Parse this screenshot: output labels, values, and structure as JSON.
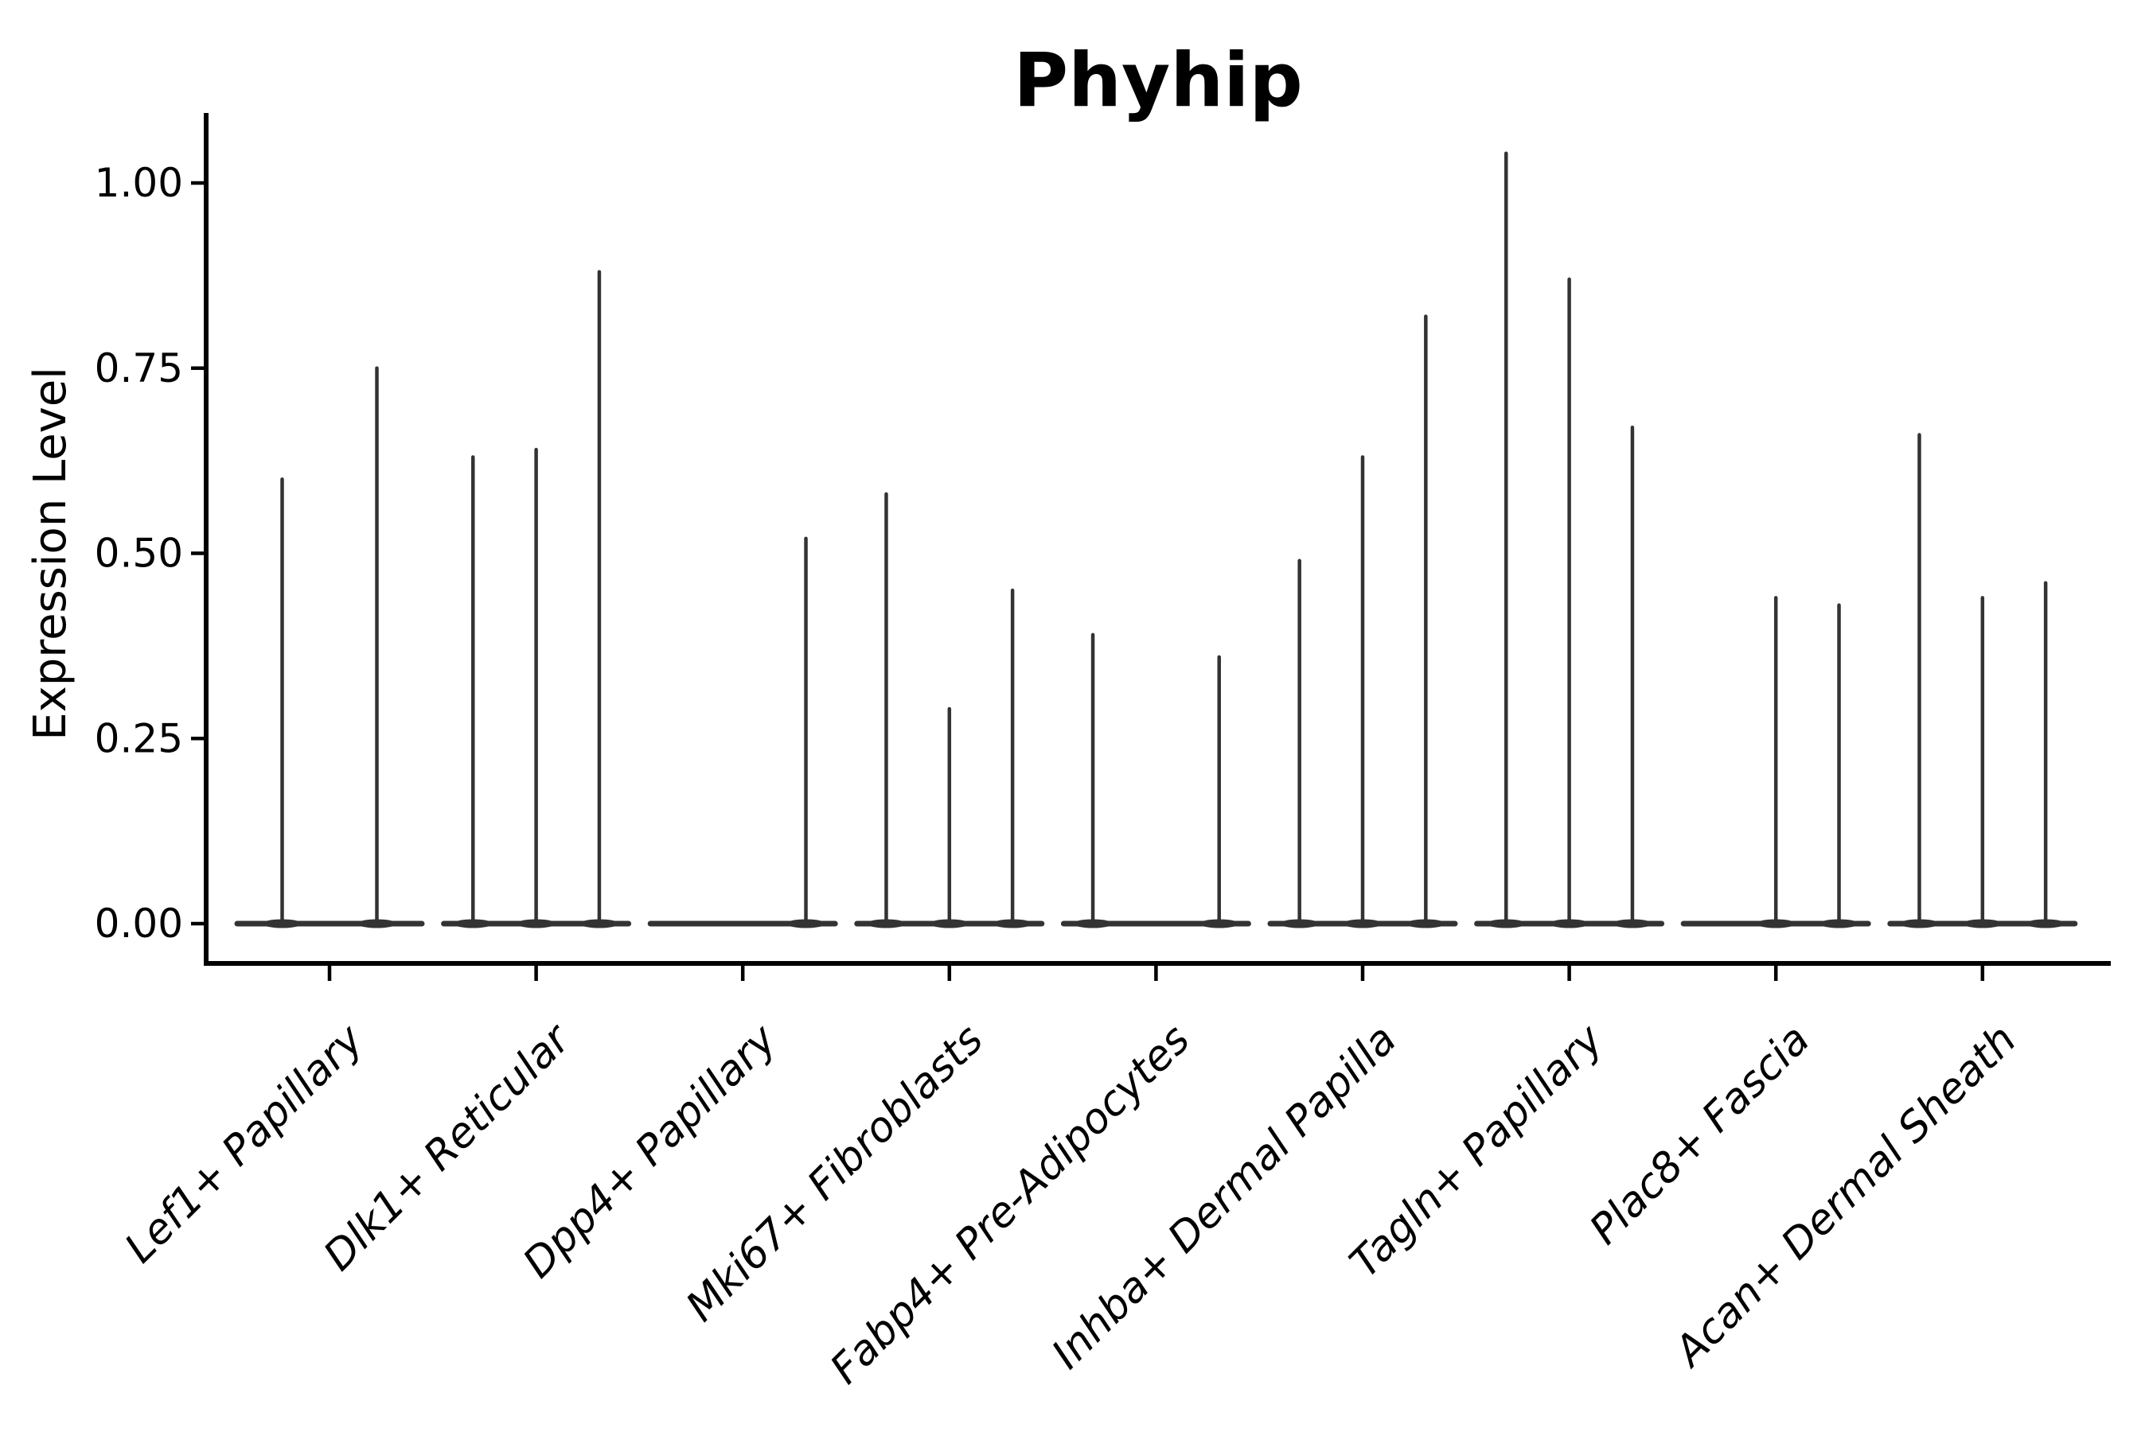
{
  "chart_data": {
    "type": "violin",
    "title": "Phyhip",
    "ylabel": "Expression Level",
    "xlabel": "",
    "ylim": [
      -0.05,
      1.09
    ],
    "ytick_values": [
      0.0,
      0.25,
      0.5,
      0.75,
      1.0
    ],
    "ytick_labels": [
      "0.00",
      "0.25",
      "0.50",
      "0.75",
      "1.00"
    ],
    "grid": false,
    "legend": false,
    "colors": {
      "violin_line": "#333333",
      "axis": "#000000",
      "background": "#ffffff"
    },
    "groups": [
      {
        "label": "Lef1+ Papillary",
        "violin_peaks": [
          0.6,
          0.75
        ]
      },
      {
        "label": "Dlk1+ Reticular",
        "violin_peaks": [
          0.63,
          0.64,
          0.88
        ]
      },
      {
        "label": "Dpp4+ Papillary",
        "violin_peaks": [
          0,
          0,
          0.52
        ]
      },
      {
        "label": "Mki67+ Fibroblasts",
        "violin_peaks": [
          0.58,
          0.29,
          0.45
        ]
      },
      {
        "label": "Fabp4+ Pre-Adipocytes",
        "violin_peaks": [
          0.39,
          0,
          0.36
        ]
      },
      {
        "label": "Inhba+ Dermal Papilla",
        "violin_peaks": [
          0.49,
          0.63,
          0.82
        ]
      },
      {
        "label": "Tagln+ Papillary",
        "violin_peaks": [
          1.04,
          0.87,
          0.67
        ]
      },
      {
        "label": "Plac8+ Fascia",
        "violin_peaks": [
          0,
          0.44,
          0.43
        ]
      },
      {
        "label": "Acan+ Dermal Sheath",
        "violin_peaks": [
          0.66,
          0.44,
          0.46
        ]
      }
    ]
  }
}
